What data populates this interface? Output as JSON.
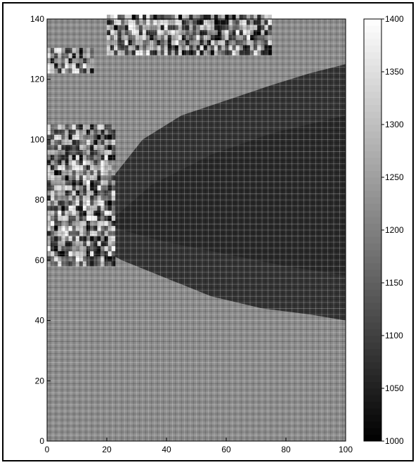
{
  "chart_data": {
    "type": "heatmap",
    "x": {
      "range": [
        0,
        100
      ],
      "ticks": [
        "0",
        "20",
        "40",
        "60",
        "80",
        "100"
      ]
    },
    "y": {
      "range": [
        0,
        140
      ],
      "ticks": [
        "0",
        "20",
        "40",
        "60",
        "80",
        "100",
        "120",
        "140"
      ]
    },
    "colorbar": {
      "range": [
        1000,
        1400
      ],
      "ticks": [
        "1000",
        "1050",
        "1100",
        "1150",
        "1200",
        "1250",
        "1300",
        "1350",
        "1400"
      ],
      "colormap": "gray"
    },
    "grid": true,
    "background_level": 1220,
    "regions": [
      {
        "feature": "dark lens-shaped region",
        "x_range": [
          8,
          100
        ],
        "y_range": [
          40,
          125
        ],
        "approx_value": 1080
      },
      {
        "feature": "noisy speckled region",
        "x_range": [
          0,
          22
        ],
        "y_range": [
          58,
          105
        ],
        "approx_value": 1120
      },
      {
        "feature": "noisy speckled region",
        "x_range": [
          20,
          75
        ],
        "y_range": [
          128,
          140
        ],
        "approx_value": 1120
      },
      {
        "feature": "noisy speckled patch",
        "x_range": [
          0,
          15
        ],
        "y_range": [
          122,
          130
        ],
        "approx_value": 1150
      }
    ]
  }
}
